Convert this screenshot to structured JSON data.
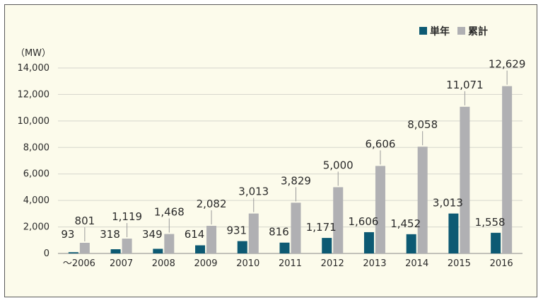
{
  "chart_data": {
    "type": "bar",
    "unit_label": "（MW）",
    "categories": [
      "〜2006",
      "2007",
      "2008",
      "2009",
      "2010",
      "2011",
      "2012",
      "2013",
      "2014",
      "2015",
      "2016"
    ],
    "series": [
      {
        "name": "単年",
        "color": "#0d5a73",
        "values": [
          93,
          318,
          349,
          614,
          931,
          816,
          1171,
          1606,
          1452,
          3013,
          1558
        ],
        "labels": [
          "93",
          "318",
          "349",
          "614",
          "931",
          "816",
          "1,171",
          "1,606",
          "1,452",
          "3,013",
          "1,558"
        ]
      },
      {
        "name": "累計",
        "color": "#b0b0b3",
        "values": [
          801,
          1119,
          1468,
          2082,
          3013,
          3829,
          5000,
          6606,
          8058,
          11071,
          12629
        ],
        "labels": [
          "801",
          "1,119",
          "1,468",
          "2,082",
          "3,013",
          "3,829",
          "5,000",
          "6,606",
          "8,058",
          "11,071",
          "12,629"
        ]
      }
    ],
    "yticks": [
      "0",
      "2,000",
      "4,000",
      "6,000",
      "8,000",
      "10,000",
      "12,000",
      "14,000"
    ],
    "ylim": [
      0,
      14000
    ],
    "grid": true,
    "legend_position": "top-right"
  }
}
